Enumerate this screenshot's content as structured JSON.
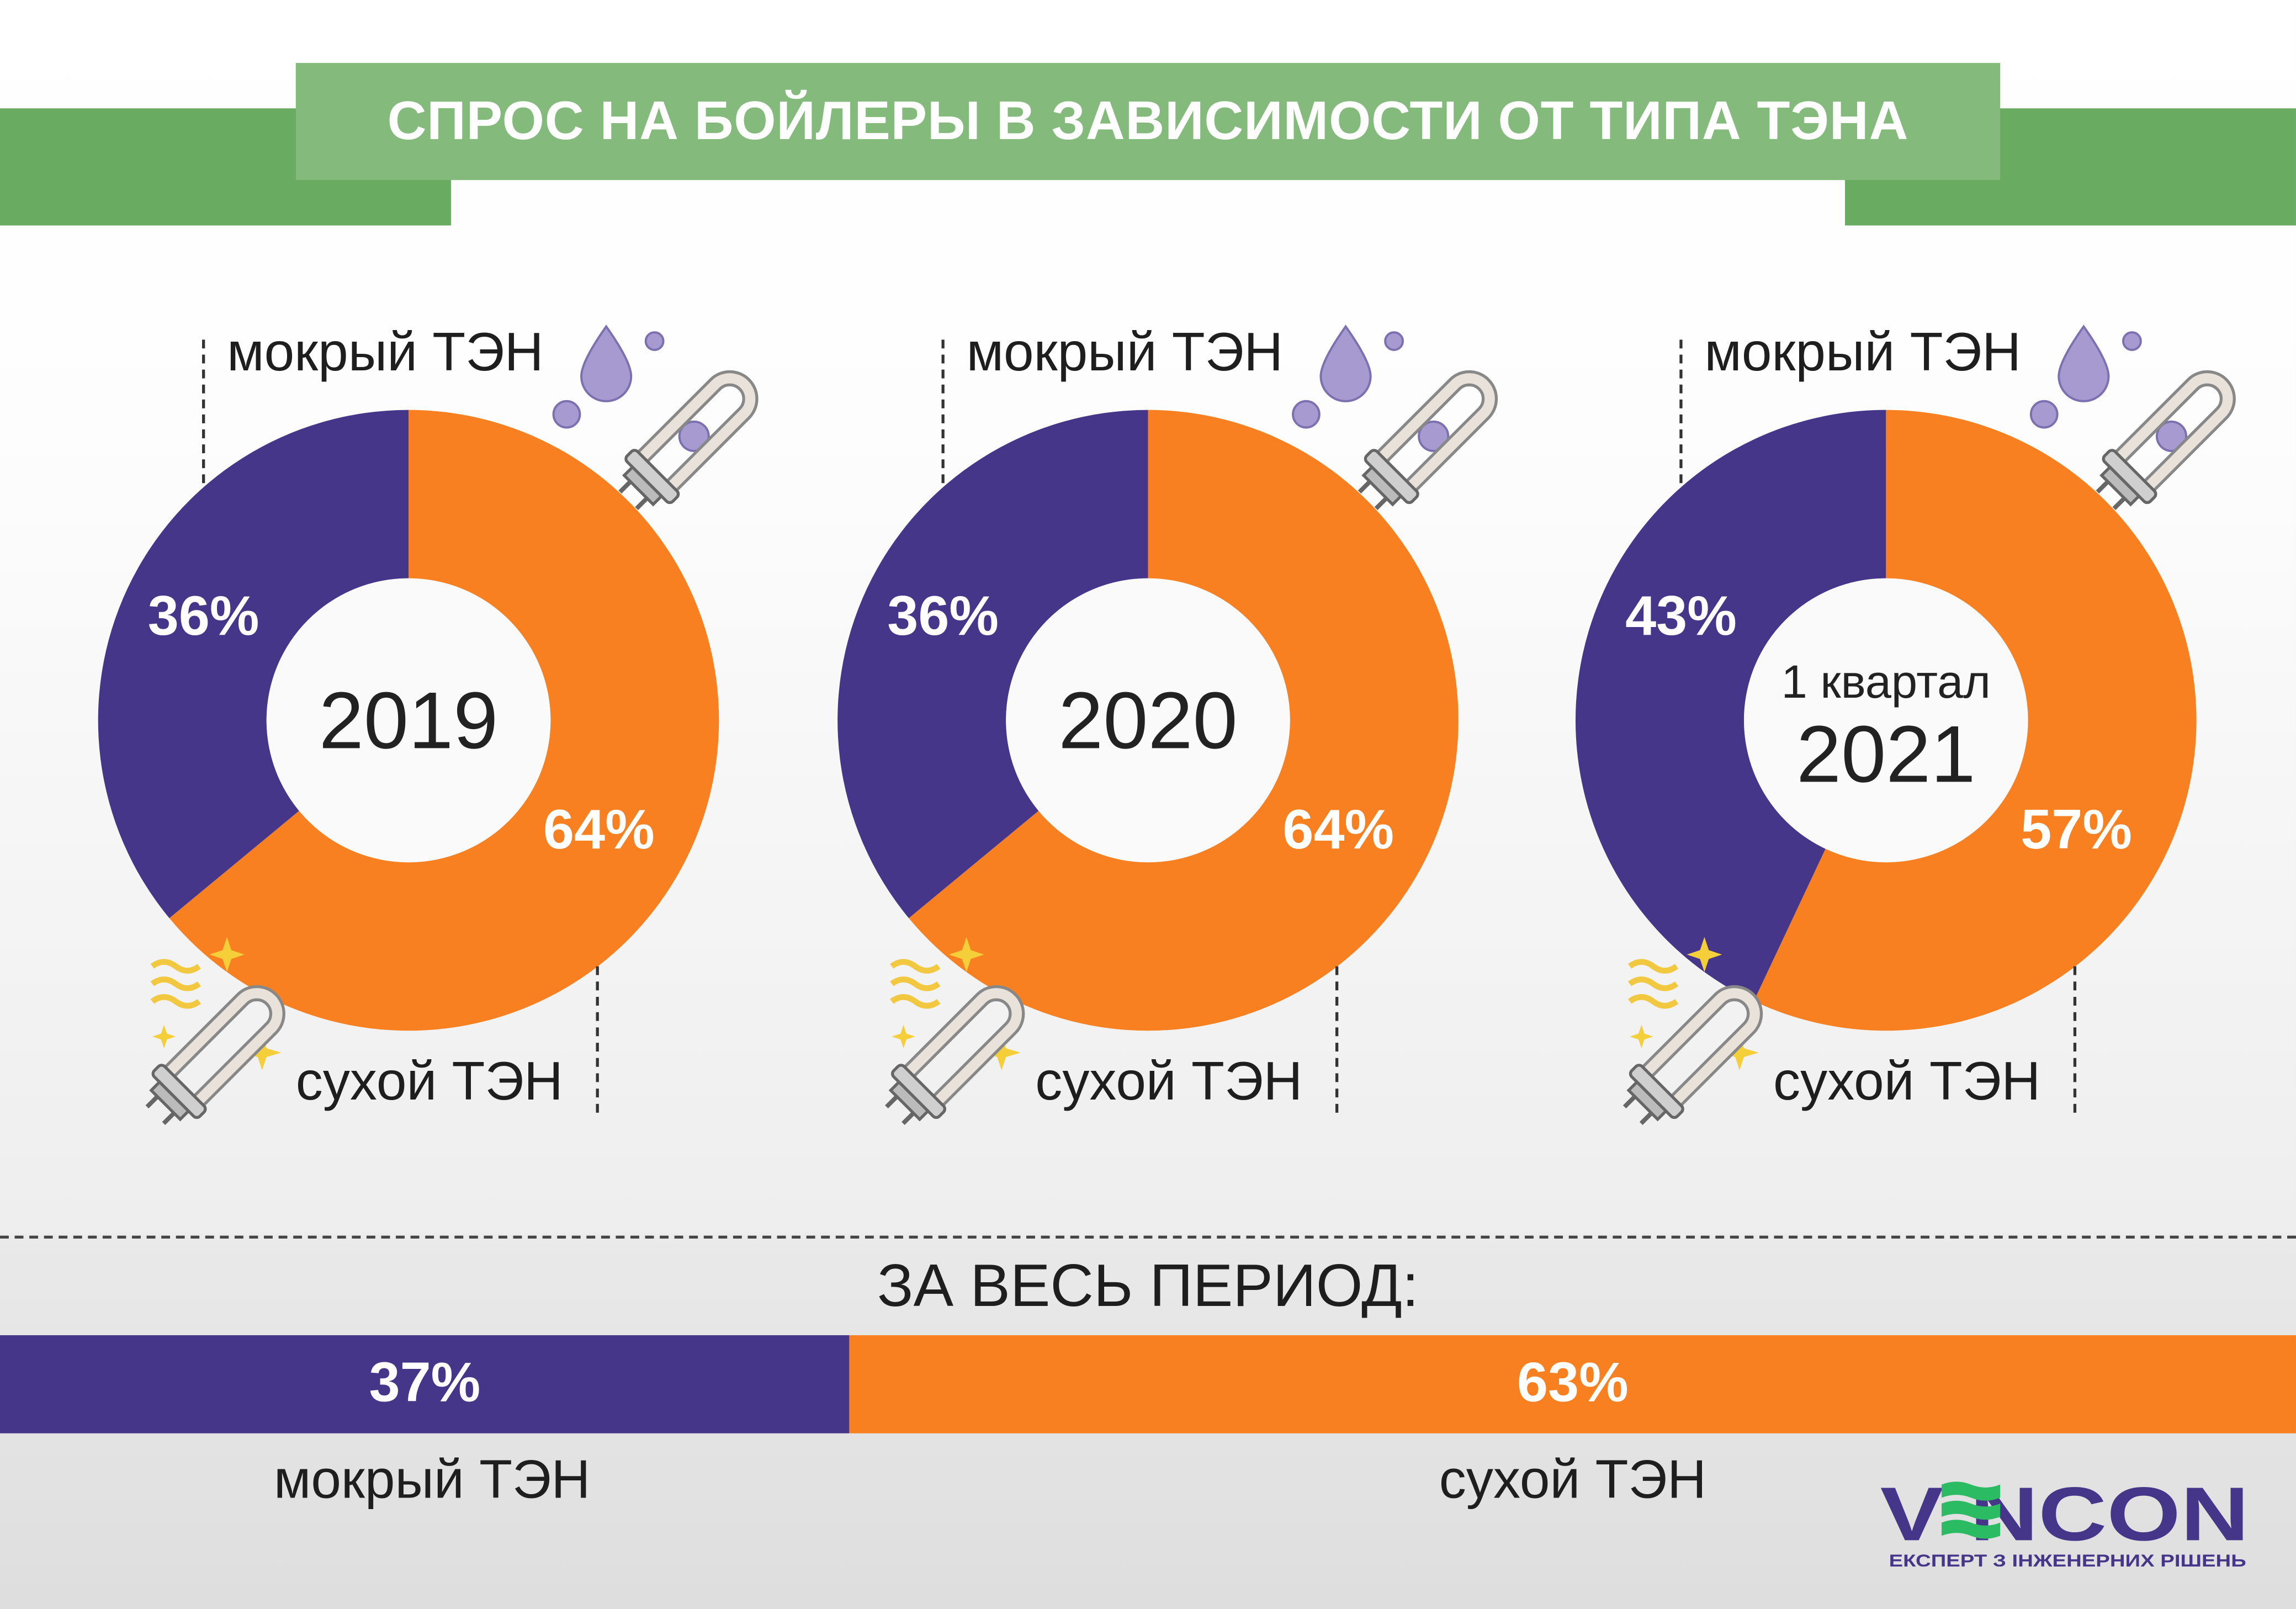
{
  "title": "СПРОС НА БОЙЛЕРЫ В ЗАВИСИМОСТИ ОТ ТИПА ТЭНА",
  "colors": {
    "wet": "#46368a",
    "dry": "#f98021",
    "band": "#6aab62",
    "title_box": "#85ba7d"
  },
  "labels": {
    "wet": "мокрый ТЭН",
    "dry": "сухой ТЭН"
  },
  "chart_data": [
    {
      "type": "pie",
      "variant": "donut",
      "center_label": "2019",
      "categories": [
        "мокрый ТЭН",
        "сухой ТЭН"
      ],
      "values": [
        36,
        64
      ],
      "data_labels": [
        "36%",
        "64%"
      ]
    },
    {
      "type": "pie",
      "variant": "donut",
      "center_label": "2020",
      "categories": [
        "мокрый ТЭН",
        "сухой ТЭН"
      ],
      "values": [
        36,
        64
      ],
      "data_labels": [
        "36%",
        "64%"
      ]
    },
    {
      "type": "pie",
      "variant": "donut",
      "center_label_top": "1 квартал",
      "center_label": "2021",
      "categories": [
        "мокрый ТЭН",
        "сухой ТЭН"
      ],
      "values": [
        43,
        57
      ],
      "data_labels": [
        "43%",
        "57%"
      ]
    },
    {
      "type": "bar",
      "variant": "stacked-horizontal",
      "title": "ЗА ВЕСЬ ПЕРИОД:",
      "categories": [
        "мокрый ТЭН",
        "сухой ТЭН"
      ],
      "values": [
        37,
        63
      ],
      "data_labels": [
        "37%",
        "63%"
      ]
    }
  ],
  "logo": {
    "name": "VENCON",
    "tagline": "ЕКСПЕРТ З ІНЖЕНЕРНИХ РІШЕНЬ"
  }
}
